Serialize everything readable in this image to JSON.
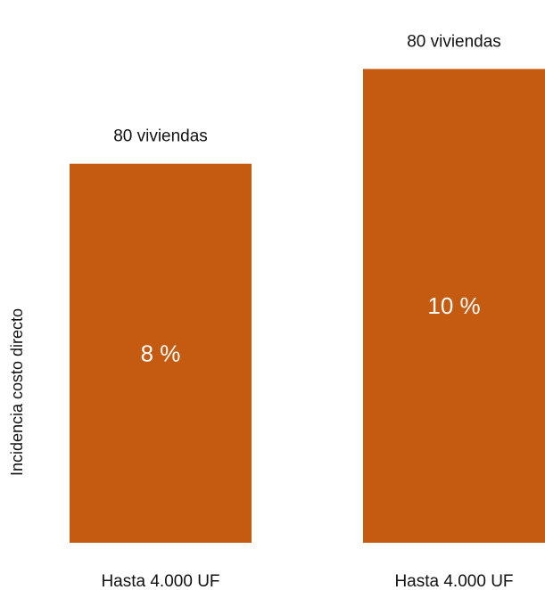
{
  "chart_data": {
    "type": "bar",
    "title": "",
    "xlabel": "",
    "ylabel": "Incidencia costo directo",
    "categories": [
      "Hasta 4.000 UF",
      "Hasta 4.000 UF"
    ],
    "values": [
      8,
      10
    ],
    "value_labels": [
      "8 %",
      "10 %"
    ],
    "top_labels": [
      "80 viviendas",
      "80 viviendas"
    ],
    "ylim": [
      0,
      10.12
    ],
    "grid": false,
    "legend": "none",
    "bar_color": "#C55A11"
  }
}
